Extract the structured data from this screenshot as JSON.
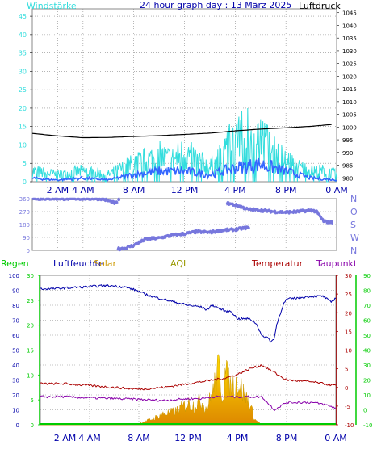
{
  "header": {
    "wind_label": "Windstärke",
    "title": "24 hour graph day : 13 März 2025",
    "pressure_label": "Luftdruck"
  },
  "colors": {
    "wind": "#33dddd",
    "wind_avg": "#3366ff",
    "pressure": "#000000",
    "direction": "#7777dd",
    "rain": "#00cc00",
    "humidity": "#0000aa",
    "solar": "#ffcc00",
    "aqi": "#999900",
    "temperature": "#aa0000",
    "dewpoint": "#8800aa",
    "grid": "#888888"
  },
  "x_axis": {
    "ticks": [
      "2 AM",
      "4 AM",
      "8 AM",
      "12 PM",
      "4 PM",
      "8 PM",
      "0 AM"
    ],
    "hours": [
      2,
      4,
      8,
      12,
      16,
      20,
      24
    ]
  },
  "legend": {
    "rain": "Regen",
    "humidity": "Luftfeuchte",
    "solar": "Solar",
    "aqi": "AQI",
    "temperature": "Temperatur",
    "dewpoint": "Taupunkt"
  },
  "chart_data": [
    {
      "type": "line",
      "name": "wind-pressure",
      "x_unit": "hour",
      "left_axis": {
        "label": "Windstärke",
        "ticks": [
          0,
          5,
          10,
          15,
          20,
          25,
          30,
          35,
          40,
          45
        ],
        "range": [
          0,
          47
        ]
      },
      "right_axis": {
        "label": "Luftdruck",
        "ticks": [
          980,
          985,
          990,
          995,
          1000,
          1005,
          1010,
          1015,
          1020,
          1025,
          1030,
          1035,
          1040,
          1045
        ],
        "range": [
          978.5,
          1046.5
        ]
      },
      "pressure": {
        "x": [
          0,
          2,
          4,
          6,
          8,
          10,
          12,
          14,
          16,
          18,
          20,
          22,
          23.6
        ],
        "y": [
          997.5,
          996.5,
          995.8,
          995.9,
          996.3,
          996.6,
          997.1,
          997.6,
          998.5,
          999.2,
          999.7,
          1000.3,
          1001.0
        ]
      },
      "wind_gust_envelope": {
        "x": [
          0,
          2,
          4,
          6,
          8,
          9,
          10,
          11,
          12,
          13,
          14,
          15,
          16,
          17,
          18,
          19,
          20,
          21,
          22,
          23,
          24
        ],
        "y": [
          3,
          2,
          3,
          2,
          5,
          6,
          7,
          6,
          8,
          6,
          4,
          7,
          11,
          12,
          10,
          8,
          6,
          4,
          3,
          3,
          2
        ]
      },
      "wind_avg_envelope": {
        "x": [
          0,
          2,
          4,
          6,
          8,
          10,
          12,
          14,
          16,
          18,
          20,
          22,
          24
        ],
        "y": [
          1,
          0.5,
          1,
          0.5,
          2,
          3,
          3,
          2,
          4,
          5,
          3,
          1,
          0.5
        ]
      }
    },
    {
      "type": "scatter",
      "name": "wind-direction",
      "left_axis": {
        "ticks": [
          0,
          90,
          180,
          270,
          360
        ]
      },
      "right_axis": {
        "ticks": [
          "N",
          "W",
          "S",
          "O",
          "N"
        ]
      },
      "segments": [
        {
          "x": [
            0,
            5.5,
            6.5,
            6.7
          ],
          "y": [
            360,
            360,
            330,
            330
          ]
        },
        {
          "x": [
            6.8,
            6.9
          ],
          "y": [
            350,
            360
          ]
        },
        {
          "x": [
            6.7,
            7.3,
            8,
            9,
            10,
            11,
            12,
            13,
            14,
            15,
            16,
            17,
            17.1
          ],
          "y": [
            10,
            15,
            35,
            80,
            85,
            105,
            115,
            130,
            125,
            140,
            145,
            160,
            145
          ]
        },
        {
          "x": [
            15.3,
            16.3,
            17,
            18,
            19,
            20,
            21,
            22,
            22.4,
            23,
            23.7
          ],
          "y": [
            330,
            310,
            285,
            280,
            270,
            265,
            270,
            280,
            270,
            200,
            195
          ]
        }
      ]
    },
    {
      "type": "line",
      "name": "humidity-temperature",
      "left_axis": {
        "label": "Regen",
        "ticks": [
          0,
          10,
          20,
          30,
          40,
          50,
          60,
          70,
          80,
          90,
          100
        ],
        "range": [
          0,
          100
        ]
      },
      "left_axis_2": {
        "label": "Luftfeuchte",
        "ticks": [
          0,
          5,
          10,
          15,
          20,
          25,
          30
        ],
        "range": [
          0,
          30
        ]
      },
      "right_axis": {
        "label": "Temperatur",
        "ticks": [
          -10,
          -5,
          0,
          5,
          10,
          15,
          20,
          25,
          30
        ],
        "range": [
          -10,
          30
        ]
      },
      "right_axis_2": {
        "label": "Taupunkt",
        "ticks": [
          -10,
          0,
          10,
          20,
          30,
          40,
          50,
          60,
          70,
          80,
          90
        ],
        "range": [
          -10,
          90
        ]
      },
      "humidity": {
        "x": [
          0,
          1,
          3,
          5,
          6,
          7,
          7.8,
          8.3,
          9,
          10,
          11,
          12,
          13,
          13.5,
          14,
          15,
          15.5,
          16,
          17,
          17.5,
          18,
          18.2,
          18.5,
          18.7,
          19,
          19.2,
          19.7,
          20,
          21,
          22,
          23,
          23.6,
          24
        ],
        "y": [
          91,
          91,
          92,
          93,
          93,
          92,
          90,
          88,
          86,
          84,
          82,
          80,
          79,
          77,
          80,
          76,
          76,
          71,
          71,
          68,
          60,
          58,
          59,
          55,
          58,
          67,
          80,
          84,
          85,
          86,
          86,
          82,
          85
        ]
      },
      "temperature": {
        "x": [
          0,
          2,
          4,
          6,
          8,
          10,
          12,
          13,
          14,
          15,
          16,
          17,
          18,
          19,
          20,
          22,
          23,
          24
        ],
        "y": [
          1,
          1,
          0.5,
          0,
          -0.5,
          0,
          1,
          1.5,
          2,
          2.5,
          3.5,
          5,
          6,
          4,
          2,
          1.5,
          1,
          0.5
        ]
      },
      "dewpoint": {
        "x": [
          0,
          2,
          4,
          6,
          8,
          10,
          12,
          13,
          14,
          15,
          16,
          17,
          18,
          19,
          20,
          22,
          23,
          24
        ],
        "y": [
          -2.5,
          -2.5,
          -2.8,
          -3,
          -3.2,
          -3.5,
          -3,
          -3,
          -2.5,
          -2.5,
          -2.5,
          -2.5,
          -2.5,
          -6,
          -4,
          -4,
          -4.5,
          -5.5
        ]
      },
      "solar": {
        "x": [
          0,
          7,
          8,
          9,
          10,
          11,
          12,
          12.5,
          13,
          13.5,
          14,
          14.5,
          14.8,
          15,
          15.5,
          16,
          17,
          17.4,
          18,
          24
        ],
        "y": [
          0,
          0,
          1,
          4,
          8,
          10,
          16,
          14,
          18,
          12,
          24,
          42,
          20,
          38,
          28,
          32,
          16,
          4,
          0,
          0
        ]
      },
      "rain": {
        "x": [
          0,
          24
        ],
        "y": [
          0,
          0
        ]
      }
    }
  ]
}
